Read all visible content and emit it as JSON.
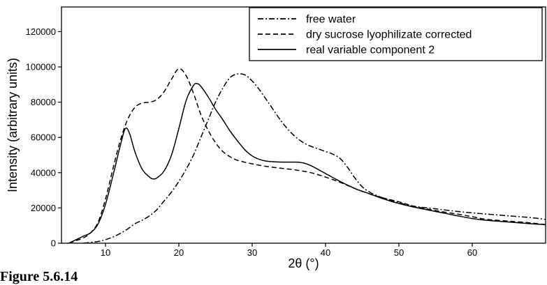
{
  "caption": "Figure 5.6.14",
  "chart_data": {
    "type": "line",
    "title": "",
    "xlabel": "2θ (°)",
    "ylabel": "Intensity (arbitrary units)",
    "xlim": [
      4,
      70
    ],
    "ylim": [
      0,
      134000
    ],
    "x_ticks": [
      10,
      20,
      30,
      40,
      50,
      60
    ],
    "y_ticks": [
      0,
      20000,
      40000,
      60000,
      80000,
      100000,
      120000
    ],
    "grid": false,
    "legend_position": "top-right",
    "series": [
      {
        "name": "free water",
        "style": "dash-dot",
        "points": [
          [
            7,
            0
          ],
          [
            9,
            1000
          ],
          [
            10,
            2000
          ],
          [
            11,
            3500
          ],
          [
            12,
            5500
          ],
          [
            13,
            8000
          ],
          [
            14,
            11000
          ],
          [
            15,
            13000
          ],
          [
            16,
            15500
          ],
          [
            17,
            19000
          ],
          [
            18,
            24000
          ],
          [
            19,
            29000
          ],
          [
            20,
            35000
          ],
          [
            21,
            42000
          ],
          [
            22,
            50000
          ],
          [
            23,
            60000
          ],
          [
            24,
            70000
          ],
          [
            25,
            80000
          ],
          [
            26,
            88000
          ],
          [
            27,
            94000
          ],
          [
            28,
            96000
          ],
          [
            29,
            95500
          ],
          [
            30,
            92000
          ],
          [
            31,
            87000
          ],
          [
            32,
            81000
          ],
          [
            33,
            75000
          ],
          [
            34,
            69000
          ],
          [
            35,
            64000
          ],
          [
            36,
            60000
          ],
          [
            37,
            57000
          ],
          [
            38,
            55000
          ],
          [
            39,
            53500
          ],
          [
            40,
            52000
          ],
          [
            41,
            50500
          ],
          [
            42,
            48000
          ],
          [
            43,
            43000
          ],
          [
            44,
            37000
          ],
          [
            45,
            32000
          ],
          [
            46,
            29000
          ],
          [
            47,
            27000
          ],
          [
            48,
            25500
          ],
          [
            50,
            23000
          ],
          [
            52,
            21000
          ],
          [
            55,
            19500
          ],
          [
            58,
            18000
          ],
          [
            60,
            17200
          ],
          [
            62,
            16500
          ],
          [
            65,
            15500
          ],
          [
            68,
            14500
          ],
          [
            70,
            13500
          ]
        ]
      },
      {
        "name": "dry sucrose lyophilizate corrected",
        "style": "dashed",
        "points": [
          [
            5,
            0
          ],
          [
            6,
            1500
          ],
          [
            7,
            3000
          ],
          [
            8,
            6000
          ],
          [
            9,
            12000
          ],
          [
            10,
            25000
          ],
          [
            11,
            42000
          ],
          [
            12,
            58000
          ],
          [
            13,
            70000
          ],
          [
            14,
            77000
          ],
          [
            15,
            79500
          ],
          [
            16,
            80000
          ],
          [
            17,
            81500
          ],
          [
            18,
            86000
          ],
          [
            19,
            93000
          ],
          [
            20,
            99000
          ],
          [
            21,
            95000
          ],
          [
            22,
            85000
          ],
          [
            23,
            73000
          ],
          [
            24,
            64000
          ],
          [
            25,
            57000
          ],
          [
            26,
            52000
          ],
          [
            27,
            49000
          ],
          [
            28,
            47000
          ],
          [
            30,
            45000
          ],
          [
            32,
            43500
          ],
          [
            34,
            42500
          ],
          [
            36,
            41500
          ],
          [
            38,
            40000
          ],
          [
            40,
            37500
          ],
          [
            42,
            34500
          ],
          [
            44,
            31000
          ],
          [
            46,
            28000
          ],
          [
            48,
            25500
          ],
          [
            50,
            23500
          ],
          [
            52,
            21000
          ],
          [
            55,
            18500
          ],
          [
            58,
            16500
          ],
          [
            60,
            15000
          ],
          [
            62,
            13500
          ],
          [
            65,
            12500
          ],
          [
            68,
            11500
          ],
          [
            70,
            10500
          ]
        ]
      },
      {
        "name": "real variable component 2",
        "style": "solid",
        "points": [
          [
            5,
            0
          ],
          [
            6,
            2000
          ],
          [
            7,
            4000
          ],
          [
            8,
            6000
          ],
          [
            9,
            11000
          ],
          [
            10,
            22000
          ],
          [
            11,
            38000
          ],
          [
            12,
            55000
          ],
          [
            12.7,
            65000
          ],
          [
            13.3,
            62000
          ],
          [
            14,
            52000
          ],
          [
            15,
            42000
          ],
          [
            16,
            37500
          ],
          [
            16.5,
            36500
          ],
          [
            17,
            37000
          ],
          [
            18,
            41000
          ],
          [
            19,
            50000
          ],
          [
            20,
            65000
          ],
          [
            21,
            81000
          ],
          [
            22,
            89500
          ],
          [
            22.5,
            90500
          ],
          [
            23,
            89000
          ],
          [
            24,
            83000
          ],
          [
            25,
            76000
          ],
          [
            26,
            70000
          ],
          [
            27,
            63500
          ],
          [
            28,
            58000
          ],
          [
            29,
            53000
          ],
          [
            30,
            49500
          ],
          [
            31,
            47500
          ],
          [
            32,
            46500
          ],
          [
            34,
            46000
          ],
          [
            36,
            46000
          ],
          [
            37,
            45500
          ],
          [
            38,
            44000
          ],
          [
            40,
            39500
          ],
          [
            42,
            35000
          ],
          [
            44,
            31000
          ],
          [
            46,
            28000
          ],
          [
            48,
            25000
          ],
          [
            50,
            22500
          ],
          [
            52,
            20500
          ],
          [
            55,
            18000
          ],
          [
            58,
            15500
          ],
          [
            60,
            14000
          ],
          [
            62,
            13000
          ],
          [
            65,
            12000
          ],
          [
            68,
            11000
          ],
          [
            70,
            10500
          ]
        ]
      }
    ]
  }
}
